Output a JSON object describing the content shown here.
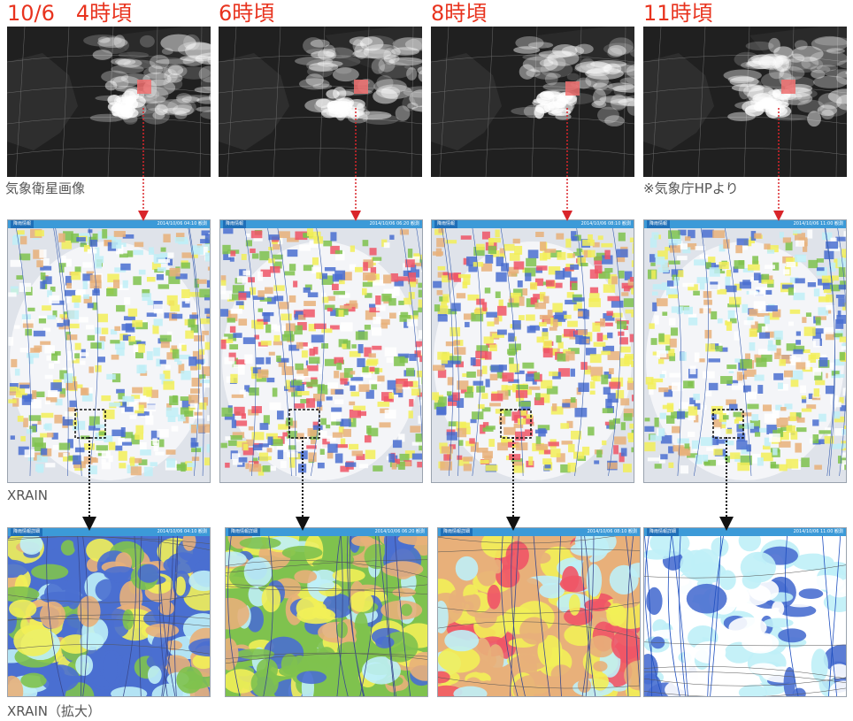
{
  "titles": [
    "10/6　4時頃",
    "6時頃",
    "8時頃",
    "11時頃"
  ],
  "captions": {
    "satellite": "気象衛星画像",
    "source": "※気象庁HPより",
    "xrain": "XRAIN",
    "xrain_zoom": "XRAIN（拡大）"
  },
  "radar_panels": [
    {
      "header_left": "降雨情報",
      "header_right": "2014/10/06 04:10 観測"
    },
    {
      "header_left": "降雨情報",
      "header_right": "2014/10/06 06:20 観測"
    },
    {
      "header_left": "降雨情報",
      "header_right": "2014/10/06 08:10 観測"
    },
    {
      "header_left": "降雨情報",
      "header_right": "2014/10/06 11:00 観測"
    }
  ],
  "zoom_panels": [
    {
      "header_left": "降雨情報詳細",
      "header_right": "2014/10/06 04:10 観測"
    },
    {
      "header_left": "降雨情報詳細",
      "header_right": "2014/10/06 06:20 観測"
    },
    {
      "header_left": "降雨情報詳細",
      "header_right": "2014/10/06 08:10 観測"
    },
    {
      "header_left": "降雨情報詳細",
      "header_right": "2014/10/06 11:00 観測"
    }
  ],
  "colors": {
    "title_red": "#e8331e",
    "caption_gray": "#555555",
    "arrow_red": "#d9252a",
    "arrow_black": "#111111",
    "rain_blue": "#4a6fd0",
    "rain_green": "#7fc24e",
    "rain_yellow": "#f2ef58",
    "rain_orange": "#e8b07a",
    "rain_red": "#ef5566",
    "rain_light": "#bfeff7",
    "header_blue": "#3c9ad8"
  }
}
